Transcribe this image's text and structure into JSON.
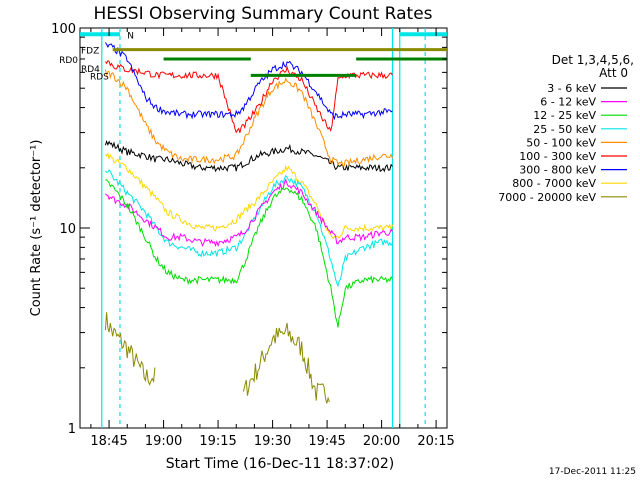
{
  "chart_data": {
    "type": "line",
    "title": "HESSI Observing Summary Count Rates",
    "xlabel": "Start Time (16-Dec-11 18:37:02)",
    "ylabel": "Count Rate (s⁻¹ detector⁻¹)",
    "y_scale": "log",
    "ylim": [
      1,
      100
    ],
    "xlim": [
      "18:37",
      "20:18"
    ],
    "x_ticks": [
      "18:45",
      "19:00",
      "19:15",
      "19:30",
      "19:45",
      "20:00",
      "20:15"
    ],
    "y_ticks": [
      "1",
      "10",
      "100"
    ],
    "legend_position": "right",
    "legend_header": [
      "Det 1,3,4,5,6,",
      "Att 0"
    ],
    "timestamp": "17-Dec-2011 11:25",
    "flags": [
      "N",
      "FDZ",
      "RD0",
      "RD4",
      "RDS"
    ],
    "x": [
      "18:39",
      "18:44",
      "18:46",
      "18:50",
      "18:55",
      "18:58",
      "19:01",
      "19:05",
      "19:10",
      "19:15",
      "19:20",
      "19:22",
      "19:26",
      "19:30",
      "19:34",
      "19:38",
      "19:42",
      "19:46",
      "19:48",
      "19:50",
      "19:55",
      "20:00",
      "20:03"
    ],
    "series": [
      {
        "name": "3 - 6 keV",
        "color": "#000000",
        "values": [
          null,
          27,
          26,
          24,
          23,
          22,
          22,
          21,
          20,
          20,
          20,
          21,
          23,
          24,
          25,
          24,
          23,
          21,
          20,
          20,
          20,
          20,
          20
        ]
      },
      {
        "name": "6 - 12 keV",
        "color": "#ff00ff",
        "values": [
          null,
          15,
          14,
          13,
          11,
          10,
          9,
          9,
          8.5,
          8.5,
          9,
          9.5,
          12,
          15,
          17,
          15,
          12,
          9.5,
          8.5,
          9,
          9,
          9.5,
          9.5
        ]
      },
      {
        "name": "12 - 25 keV",
        "color": "#00dd00",
        "values": [
          null,
          17,
          16,
          13,
          9,
          7,
          6,
          5.5,
          5.5,
          5.5,
          5.5,
          6.5,
          10,
          14,
          16,
          14,
          10,
          5,
          3.2,
          5,
          5.5,
          5.5,
          5.5
        ]
      },
      {
        "name": "25 - 50 keV",
        "color": "#00e5e5",
        "values": [
          null,
          20,
          18,
          15,
          12,
          10,
          8.5,
          8,
          7.5,
          7.5,
          8,
          9,
          12,
          16,
          18,
          16,
          12,
          7,
          5,
          7,
          8,
          8.5,
          8.5
        ]
      },
      {
        "name": "50 - 100 keV",
        "color": "#ff8c00",
        "values": [
          null,
          60,
          58,
          50,
          33,
          27,
          24,
          22,
          22,
          22,
          23,
          27,
          38,
          50,
          55,
          48,
          33,
          22,
          21,
          21,
          22,
          23,
          23
        ]
      },
      {
        "name": "100 - 300 keV",
        "color": "#ff0000",
        "values": [
          null,
          70,
          65,
          62,
          60,
          58,
          58,
          58,
          58,
          58,
          30,
          32,
          40,
          55,
          62,
          55,
          40,
          30,
          55,
          58,
          58,
          58,
          58
        ]
      },
      {
        "name": "300 - 800 keV",
        "color": "#0000ff",
        "values": [
          null,
          82,
          80,
          70,
          45,
          40,
          38,
          37,
          37,
          37,
          37,
          40,
          52,
          62,
          67,
          60,
          48,
          37,
          36,
          37,
          37,
          38,
          38
        ]
      },
      {
        "name": "800 - 7000 keV",
        "color": "#ffd700",
        "values": [
          null,
          24,
          22,
          20,
          16,
          14,
          12,
          11,
          10,
          10,
          11,
          12,
          14,
          17,
          20,
          17,
          13,
          9,
          9,
          10,
          10,
          10,
          10
        ]
      },
      {
        "name": "7000 - 20000 keV",
        "color": "#8b8b00",
        "values": [
          null,
          3.5,
          3,
          2.5,
          1.8,
          null,
          null,
          null,
          null,
          null,
          null,
          1.5,
          2,
          2.8,
          3,
          2.5,
          1.5,
          null,
          null,
          null,
          null,
          null,
          null
        ]
      }
    ]
  }
}
